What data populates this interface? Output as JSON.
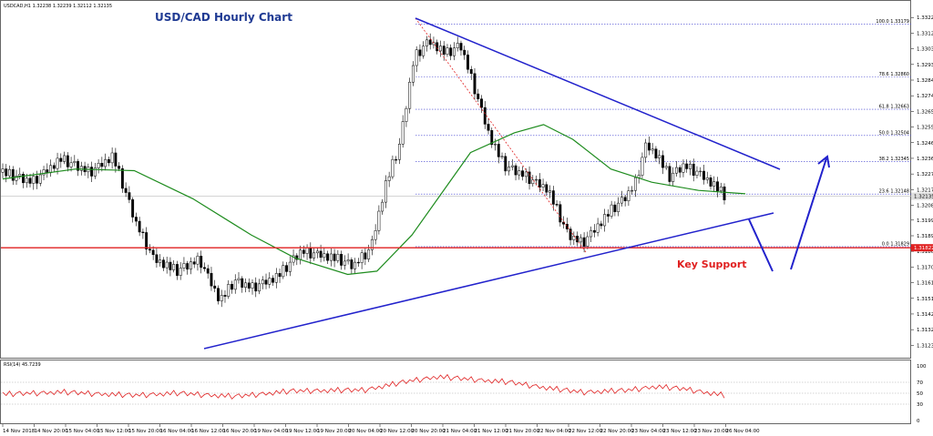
{
  "header_line": "USDCAD,H1  1.32238 1.32239 1.32112 1.32135",
  "chart_data": [
    {
      "type": "candlestick",
      "title": "USD/CAD Hourly Chart",
      "instrument": "USDCAD,H1",
      "ohlc_readout": {
        "open": 1.32238,
        "high": 1.32239,
        "low": 1.32112,
        "close": 1.32135
      },
      "ylim": [
        1.3116,
        1.3326
      ],
      "y_ticks": [
        "1.33220",
        "1.33125",
        "1.33030",
        "1.32935",
        "1.32840",
        "1.32745",
        "1.32650",
        "1.32555",
        "1.32460",
        "1.32365",
        "1.32270",
        "1.32175",
        "1.32080",
        "1.31990",
        "1.31895",
        "1.31800",
        "1.31705",
        "1.31610",
        "1.31515",
        "1.31420",
        "1.31325",
        "1.31230"
      ],
      "x_ticks": [
        "14 Nov 2018",
        "14 Nov 20:00",
        "15 Nov 04:00",
        "15 Nov 12:00",
        "15 Nov 20:00",
        "16 Nov 04:00",
        "16 Nov 12:00",
        "16 Nov 20:00",
        "19 Nov 04:00",
        "19 Nov 12:00",
        "19 Nov 20:00",
        "20 Nov 04:00",
        "20 Nov 12:00",
        "20 Nov 20:00",
        "21 Nov 04:00",
        "21 Nov 12:00",
        "21 Nov 20:00",
        "22 Nov 04:00",
        "22 Nov 12:00",
        "22 Nov 20:00",
        "23 Nov 04:00",
        "23 Nov 12:00",
        "23 Nov 20:00",
        "26 Nov 04:00"
      ],
      "current_price_label": "1.32135",
      "support_price_label": "1.31822",
      "support_level": 1.31822,
      "fibonacci_levels": [
        {
          "label": "100.0 1.33179",
          "value": 1.33179
        },
        {
          "label": "78.6 1.32860",
          "value": 1.3286
        },
        {
          "label": "61.8 1.32663",
          "value": 1.32663
        },
        {
          "label": "50.0 1.32504",
          "value": 1.32504
        },
        {
          "label": "38.2 1.32345",
          "value": 1.32345
        },
        {
          "label": "23.6 1.32148",
          "value": 1.32148
        },
        {
          "label": "0.0 1.31829",
          "value": 1.31829
        }
      ],
      "annotations": {
        "key_support": "Key Support"
      },
      "candles_count": 212,
      "moving_average_color": "#1e8c1e",
      "trendline_color": "#2222cc",
      "support_color": "#e02020"
    },
    {
      "type": "line",
      "title": "RSI(14) 45.7239",
      "indicator": "RSI(14)",
      "last_value": 45.7239,
      "ylim": [
        0,
        100
      ],
      "y_ticks": [
        "100",
        "70",
        "50",
        "30",
        "0"
      ],
      "line_color": "#e02020"
    }
  ]
}
